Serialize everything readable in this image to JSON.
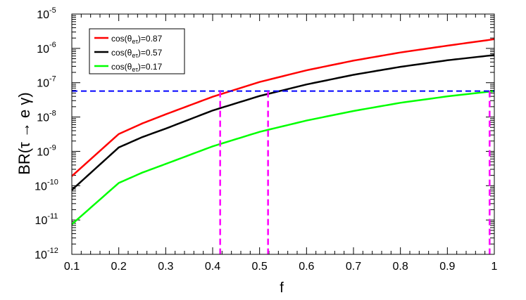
{
  "chart_data": {
    "type": "line",
    "xlabel": "f",
    "ylabel_prefix": "BR(",
    "ylabel_tau": "τ",
    "ylabel_arrow": " → ",
    "ylabel_e": "e",
    "ylabel_gamma": " γ",
    "ylabel_suffix": ")",
    "xlim": [
      0.1,
      1.0
    ],
    "ylim": [
      1e-12,
      1e-05
    ],
    "y_scale": "log",
    "x_ticks": [
      "0.1",
      "0.2",
      "0.3",
      "0.4",
      "0.5",
      "0.6",
      "0.7",
      "0.8",
      "0.9",
      "1"
    ],
    "y_ticks": [
      {
        "base": "10",
        "exp": "-12"
      },
      {
        "base": "10",
        "exp": "-11"
      },
      {
        "base": "10",
        "exp": "-10"
      },
      {
        "base": "10",
        "exp": "-9"
      },
      {
        "base": "10",
        "exp": "-8"
      },
      {
        "base": "10",
        "exp": "-7"
      },
      {
        "base": "10",
        "exp": "-6"
      },
      {
        "base": "10",
        "exp": "-5"
      }
    ],
    "grid": false,
    "legend_position": "top-left",
    "x": [
      0.1,
      0.2,
      0.25,
      0.3,
      0.4,
      0.5,
      0.6,
      0.7,
      0.8,
      0.9,
      1.0
    ],
    "series": [
      {
        "label_prefix": "cos(θ",
        "label_sub": "eτ",
        "label_suffix": ")=0.87",
        "color": "#ff0000",
        "values": [
          1.9e-10,
          3.2e-09,
          6.5e-09,
          1.2e-08,
          3.9e-08,
          1.05e-07,
          2.3e-07,
          4.4e-07,
          7.6e-07,
          1.2e-06,
          1.85e-06
        ]
      },
      {
        "label_prefix": "cos(θ",
        "label_sub": "eτ",
        "label_suffix": ")=0.57",
        "color": "#000000",
        "values": [
          7.5e-11,
          1.3e-09,
          2.6e-09,
          4.6e-09,
          1.55e-08,
          4.1e-08,
          8.9e-08,
          1.7e-07,
          2.9e-07,
          4.5e-07,
          6.4e-07
        ]
      },
      {
        "label_prefix": "cos(θ",
        "label_sub": "eτ",
        "label_suffix": ")=0.17",
        "color": "#00ff00",
        "values": [
          7.5e-12,
          1.2e-10,
          2.4e-10,
          4.3e-10,
          1.4e-09,
          3.7e-09,
          7.9e-09,
          1.5e-08,
          2.6e-08,
          4e-08,
          5.7e-08
        ]
      }
    ],
    "reference_lines": {
      "horizontal": {
        "y": 5.7e-08,
        "color": "#0000ff",
        "style": "dashed"
      },
      "vertical": [
        {
          "x": 0.416,
          "color": "#ff00ff",
          "style": "dashed"
        },
        {
          "x": 0.518,
          "color": "#ff00ff",
          "style": "dashed"
        },
        {
          "x": 0.99,
          "color": "#ff00ff",
          "style": "dashed"
        }
      ]
    }
  }
}
